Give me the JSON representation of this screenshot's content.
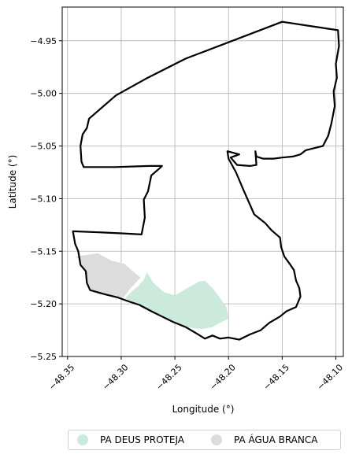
{
  "chart_data": {
    "type": "map",
    "xlabel": "Longitude (°)",
    "ylabel": "Latitude (°)",
    "xlim": [
      -48.355,
      -48.093
    ],
    "ylim": [
      -5.25,
      -4.918
    ],
    "xticks": [
      {
        "value": -48.35,
        "label": "−48.35"
      },
      {
        "value": -48.3,
        "label": "−48.30"
      },
      {
        "value": -48.25,
        "label": "−48.25"
      },
      {
        "value": -48.2,
        "label": "−48.20"
      },
      {
        "value": -48.15,
        "label": "−48.15"
      },
      {
        "value": -48.1,
        "label": "−48.10"
      }
    ],
    "yticks": [
      {
        "value": -4.95,
        "label": "−4.95"
      },
      {
        "value": -5.0,
        "label": "−5.00"
      },
      {
        "value": -5.05,
        "label": "−5.05"
      },
      {
        "value": -5.1,
        "label": "−5.10"
      },
      {
        "value": -5.15,
        "label": "−5.15"
      },
      {
        "value": -5.2,
        "label": "−5.20"
      },
      {
        "value": -5.25,
        "label": "−5.25"
      }
    ],
    "grid": true,
    "legend_position": "bottom",
    "outline": {
      "stroke": "#000000",
      "coords": [
        [
          -48.15,
          -4.932
        ],
        [
          -48.098,
          -4.94
        ],
        [
          -48.097,
          -4.955
        ],
        [
          -48.1,
          -4.972
        ],
        [
          -48.099,
          -4.985
        ],
        [
          -48.102,
          -4.998
        ],
        [
          -48.101,
          -5.012
        ],
        [
          -48.104,
          -5.028
        ],
        [
          -48.107,
          -5.04
        ],
        [
          -48.112,
          -5.05
        ],
        [
          -48.12,
          -5.052
        ],
        [
          -48.128,
          -5.054
        ],
        [
          -48.133,
          -5.058
        ],
        [
          -48.14,
          -5.06
        ],
        [
          -48.15,
          -5.061
        ],
        [
          -48.158,
          -5.062
        ],
        [
          -48.168,
          -5.062
        ],
        [
          -48.174,
          -5.06
        ],
        [
          -48.175,
          -5.055
        ],
        [
          -48.174,
          -5.068
        ],
        [
          -48.18,
          -5.069
        ],
        [
          -48.192,
          -5.068
        ],
        [
          -48.198,
          -5.061
        ],
        [
          -48.19,
          -5.058
        ],
        [
          -48.201,
          -5.055
        ],
        [
          -48.2,
          -5.062
        ],
        [
          -48.193,
          -5.075
        ],
        [
          -48.186,
          -5.092
        ],
        [
          -48.176,
          -5.115
        ],
        [
          -48.166,
          -5.123
        ],
        [
          -48.16,
          -5.13
        ],
        [
          -48.152,
          -5.137
        ],
        [
          -48.151,
          -5.146
        ],
        [
          -48.148,
          -5.155
        ],
        [
          -48.143,
          -5.162
        ],
        [
          -48.139,
          -5.168
        ],
        [
          -48.137,
          -5.178
        ],
        [
          -48.134,
          -5.185
        ],
        [
          -48.133,
          -5.193
        ],
        [
          -48.137,
          -5.203
        ],
        [
          -48.146,
          -5.207
        ],
        [
          -48.152,
          -5.212
        ],
        [
          -48.162,
          -5.218
        ],
        [
          -48.17,
          -5.225
        ],
        [
          -48.18,
          -5.229
        ],
        [
          -48.19,
          -5.234
        ],
        [
          -48.2,
          -5.232
        ],
        [
          -48.208,
          -5.233
        ],
        [
          -48.215,
          -5.23
        ],
        [
          -48.222,
          -5.233
        ],
        [
          -48.23,
          -5.228
        ],
        [
          -48.24,
          -5.222
        ],
        [
          -48.252,
          -5.217
        ],
        [
          -48.262,
          -5.212
        ],
        [
          -48.272,
          -5.207
        ],
        [
          -48.283,
          -5.201
        ],
        [
          -48.292,
          -5.198
        ],
        [
          -48.303,
          -5.194
        ],
        [
          -48.315,
          -5.191
        ],
        [
          -48.329,
          -5.187
        ],
        [
          -48.332,
          -5.18
        ],
        [
          -48.333,
          -5.169
        ],
        [
          -48.338,
          -5.163
        ],
        [
          -48.34,
          -5.15
        ],
        [
          -48.343,
          -5.143
        ],
        [
          -48.345,
          -5.131
        ],
        [
          -48.321,
          -5.132
        ],
        [
          -48.3,
          -5.133
        ],
        [
          -48.281,
          -5.134
        ],
        [
          -48.278,
          -5.118
        ],
        [
          -48.279,
          -5.101
        ],
        [
          -48.275,
          -5.093
        ],
        [
          -48.272,
          -5.078
        ],
        [
          -48.264,
          -5.071
        ],
        [
          -48.262,
          -5.069
        ],
        [
          -48.274,
          -5.069
        ],
        [
          -48.306,
          -5.07
        ],
        [
          -48.335,
          -5.07
        ],
        [
          -48.337,
          -5.065
        ],
        [
          -48.338,
          -5.05
        ],
        [
          -48.336,
          -5.039
        ],
        [
          -48.332,
          -5.033
        ],
        [
          -48.33,
          -5.024
        ],
        [
          -48.305,
          -5.002
        ],
        [
          -48.275,
          -4.985
        ],
        [
          -48.24,
          -4.967
        ],
        [
          -48.15,
          -4.932
        ]
      ]
    },
    "regions": [
      {
        "name": "PA DEUS PROTEJA",
        "color": "#cbeadb",
        "coords": [
          [
            -48.276,
            -5.17
          ],
          [
            -48.27,
            -5.18
          ],
          [
            -48.26,
            -5.189
          ],
          [
            -48.25,
            -5.192
          ],
          [
            -48.24,
            -5.186
          ],
          [
            -48.228,
            -5.179
          ],
          [
            -48.222,
            -5.178
          ],
          [
            -48.215,
            -5.185
          ],
          [
            -48.209,
            -5.193
          ],
          [
            -48.202,
            -5.203
          ],
          [
            -48.2,
            -5.214
          ],
          [
            -48.208,
            -5.218
          ],
          [
            -48.215,
            -5.222
          ],
          [
            -48.225,
            -5.224
          ],
          [
            -48.24,
            -5.222
          ],
          [
            -48.252,
            -5.217
          ],
          [
            -48.262,
            -5.212
          ],
          [
            -48.272,
            -5.207
          ],
          [
            -48.283,
            -5.201
          ],
          [
            -48.292,
            -5.198
          ],
          [
            -48.296,
            -5.194
          ],
          [
            -48.29,
            -5.188
          ],
          [
            -48.284,
            -5.183
          ],
          [
            -48.279,
            -5.177
          ]
        ]
      },
      {
        "name": "PA ÁGUA BRANCA",
        "color": "#dcdcdc",
        "coords": [
          [
            -48.343,
            -5.155
          ],
          [
            -48.335,
            -5.154
          ],
          [
            -48.322,
            -5.152
          ],
          [
            -48.309,
            -5.159
          ],
          [
            -48.297,
            -5.162
          ],
          [
            -48.287,
            -5.171
          ],
          [
            -48.282,
            -5.175
          ],
          [
            -48.292,
            -5.186
          ],
          [
            -48.298,
            -5.194
          ],
          [
            -48.315,
            -5.191
          ],
          [
            -48.329,
            -5.187
          ],
          [
            -48.332,
            -5.18
          ],
          [
            -48.333,
            -5.169
          ],
          [
            -48.338,
            -5.163
          ],
          [
            -48.34,
            -5.157
          ]
        ]
      }
    ],
    "legend": [
      {
        "label": "PA DEUS PROTEJA",
        "color": "#cbeadb"
      },
      {
        "label": "PA ÁGUA BRANCA",
        "color": "#dcdcdc"
      }
    ]
  }
}
